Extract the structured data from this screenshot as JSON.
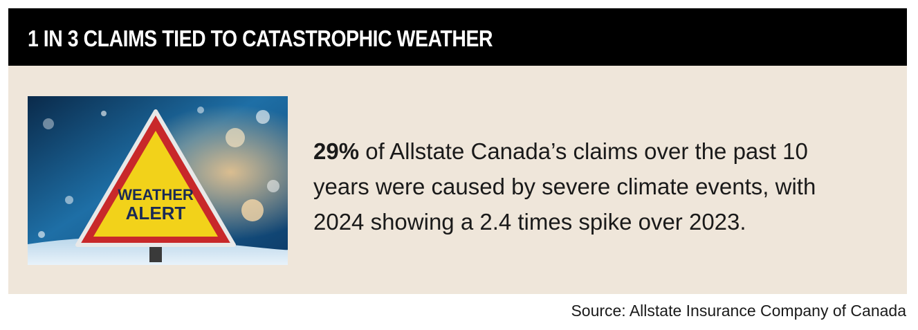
{
  "header": {
    "title": "1 IN 3 CLAIMS TIED TO CATASTROPHIC WEATHER"
  },
  "image": {
    "sign_line1": "WEATHER",
    "sign_line2": "ALERT"
  },
  "body": {
    "highlight": "29%",
    "text": " of Allstate Canada’s claims over the past 10 years were caused by severe climate events, with 2024 showing a 2.4 times spike over 2023."
  },
  "source": {
    "label": "Source:",
    "text": " Allstate Insurance Company of Canada"
  },
  "colors": {
    "header_bg": "#000000",
    "card_bg": "#efe6da",
    "sign_yellow": "#f2d21a",
    "sign_red": "#c8282a"
  }
}
